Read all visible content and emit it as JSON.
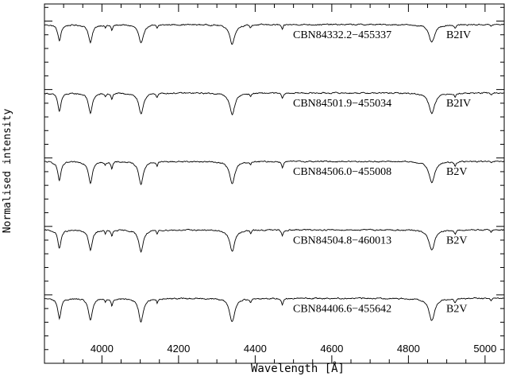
{
  "chart_data": {
    "type": "line",
    "xlabel": "Wavelength [Å]",
    "ylabel": "Normalised intensity",
    "xlim": [
      3850,
      5050
    ],
    "xticks": [
      4000,
      4200,
      4400,
      4600,
      4800,
      5000
    ],
    "xtick_labels": [
      "4000",
      "4200",
      "4400",
      "4600",
      "4800",
      "5000"
    ],
    "grid": false,
    "series": [
      {
        "name": "CBN84332.2−455337",
        "sptype": "B2IV",
        "offset": 4.6,
        "strength": 0.85
      },
      {
        "name": "CBN84501.9−455034",
        "sptype": "B2IV",
        "offset": 3.6,
        "strength": 0.95
      },
      {
        "name": "CBN84506.0−455008",
        "sptype": "B2V",
        "offset": 2.6,
        "strength": 1.0
      },
      {
        "name": "CBN84504.8−460013",
        "sptype": "B2V",
        "offset": 1.6,
        "strength": 0.95
      },
      {
        "name": "CBN84406.6−455642",
        "sptype": "B2V",
        "offset": 0.6,
        "strength": 1.05
      }
    ],
    "lines": [
      {
        "wl": 3889,
        "depth": 0.28,
        "width": 5
      },
      {
        "wl": 3970,
        "depth": 0.31,
        "width": 6
      },
      {
        "wl": 4009,
        "depth": 0.05,
        "width": 2
      },
      {
        "wl": 4026,
        "depth": 0.1,
        "width": 2.5
      },
      {
        "wl": 4102,
        "depth": 0.33,
        "width": 7
      },
      {
        "wl": 4144,
        "depth": 0.06,
        "width": 2
      },
      {
        "wl": 4340,
        "depth": 0.33,
        "width": 8
      },
      {
        "wl": 4388,
        "depth": 0.05,
        "width": 2
      },
      {
        "wl": 4471,
        "depth": 0.09,
        "width": 2.5
      },
      {
        "wl": 4861,
        "depth": 0.31,
        "width": 9
      },
      {
        "wl": 4922,
        "depth": 0.06,
        "width": 2.5
      },
      {
        "wl": 5016,
        "depth": 0.03,
        "width": 2
      }
    ]
  }
}
